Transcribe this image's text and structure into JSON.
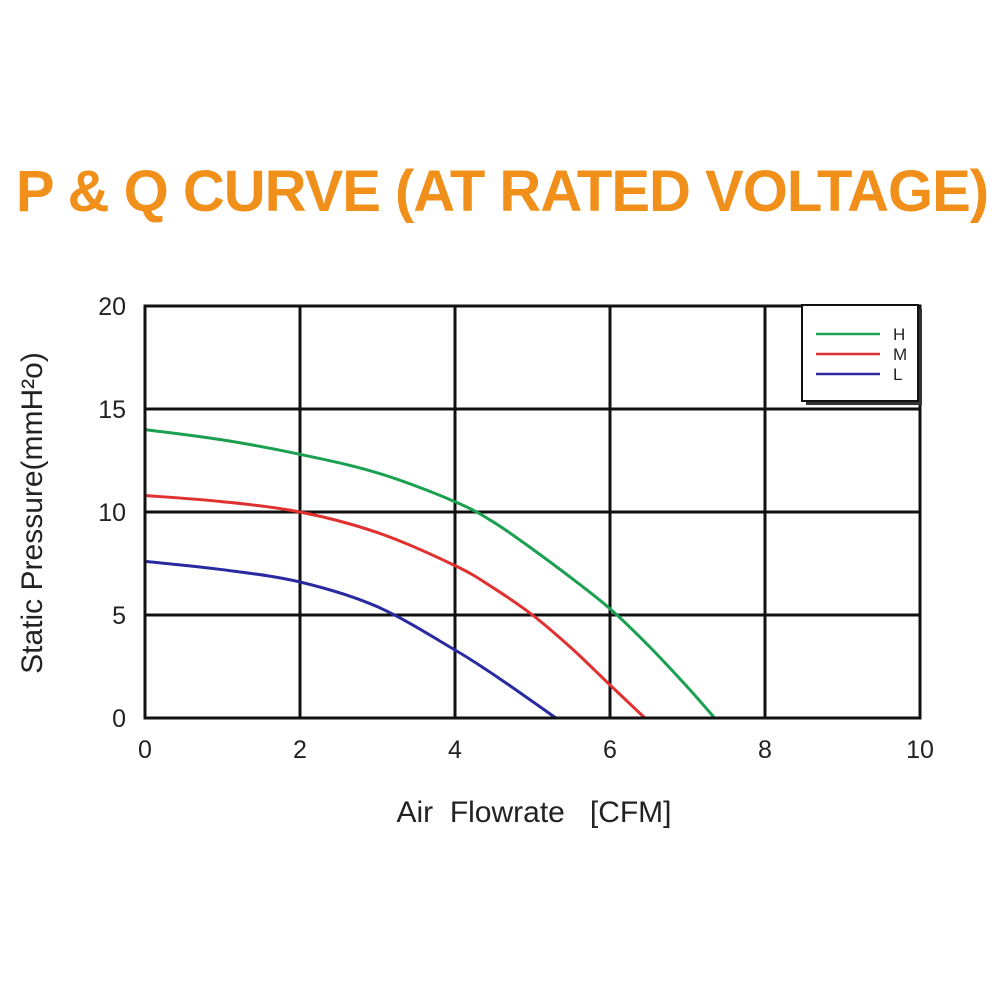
{
  "chart_data": {
    "type": "line",
    "title": "P & Q CURVE (AT RATED VOLTAGE)",
    "xlabel": "Air  Flowrate   [CFM]",
    "ylabel": "Static Pressure(mmH²o)",
    "xlim": [
      0,
      10
    ],
    "ylim": [
      0,
      20
    ],
    "xticks": [
      0,
      2,
      4,
      6,
      8,
      10
    ],
    "yticks": [
      0,
      5,
      10,
      15,
      20
    ],
    "grid": true,
    "legend_position": "top-right",
    "title_color": "#f0901a",
    "series": [
      {
        "name": "H",
        "color": "#1aa050",
        "x": [
          0,
          1,
          2,
          3,
          4,
          4.5,
          5,
          5.5,
          6,
          6.5,
          7,
          7.35
        ],
        "y": [
          14.0,
          13.5,
          12.8,
          11.9,
          10.5,
          9.5,
          8.2,
          6.8,
          5.3,
          3.5,
          1.5,
          0
        ]
      },
      {
        "name": "M",
        "color": "#e03030",
        "x": [
          0,
          1,
          2,
          3,
          4,
          4.5,
          5,
          5.5,
          6,
          6.45
        ],
        "y": [
          10.8,
          10.5,
          10.0,
          9.0,
          7.4,
          6.3,
          5.0,
          3.4,
          1.6,
          0
        ]
      },
      {
        "name": "L",
        "color": "#2a2aa0",
        "x": [
          0,
          1,
          2,
          3,
          4,
          4.5,
          5,
          5.3
        ],
        "y": [
          7.6,
          7.2,
          6.6,
          5.4,
          3.3,
          2.1,
          0.8,
          0
        ]
      }
    ]
  }
}
